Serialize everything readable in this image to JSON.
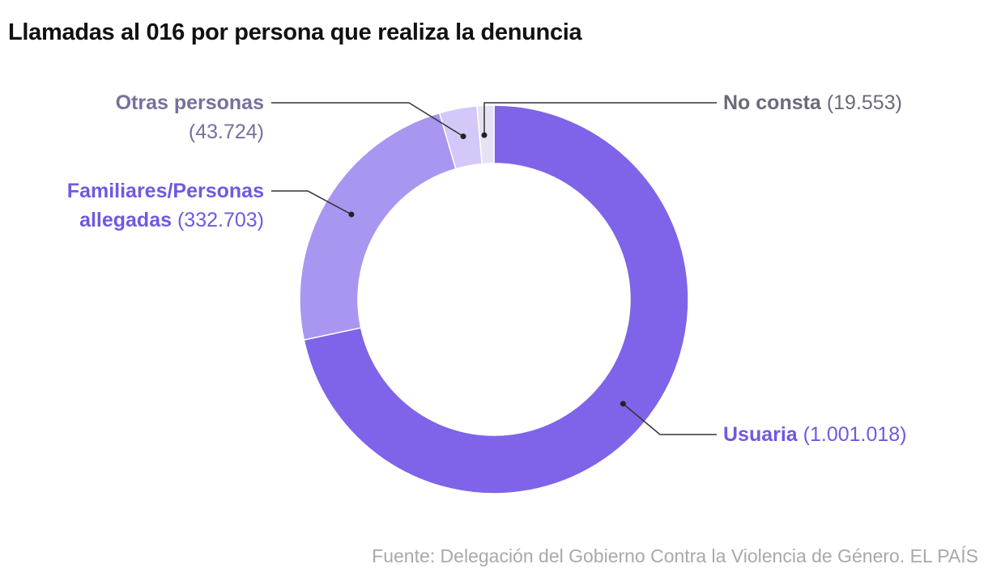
{
  "chart_data": {
    "type": "donut",
    "title": "Llamadas al 016 por persona que realiza la denuncia",
    "categories": [
      "Usuaria",
      "Familiares/Personas allegadas",
      "Otras personas",
      "No consta"
    ],
    "values": [
      1001018,
      332703,
      43724,
      19553
    ],
    "value_labels": [
      "(1.001.018)",
      "(332.703)",
      "(43.724)",
      "(19.553)"
    ],
    "colors": [
      "#7f63e8",
      "#a896f0",
      "#d3c8f7",
      "#e6e2f3"
    ],
    "label_colors": [
      "#7258e0",
      "#7258e0",
      "#77709c",
      "#6c6a7a"
    ],
    "source": "Fuente: Delegación del Gobierno Contra la Violencia de Género. EL PAÍS"
  }
}
